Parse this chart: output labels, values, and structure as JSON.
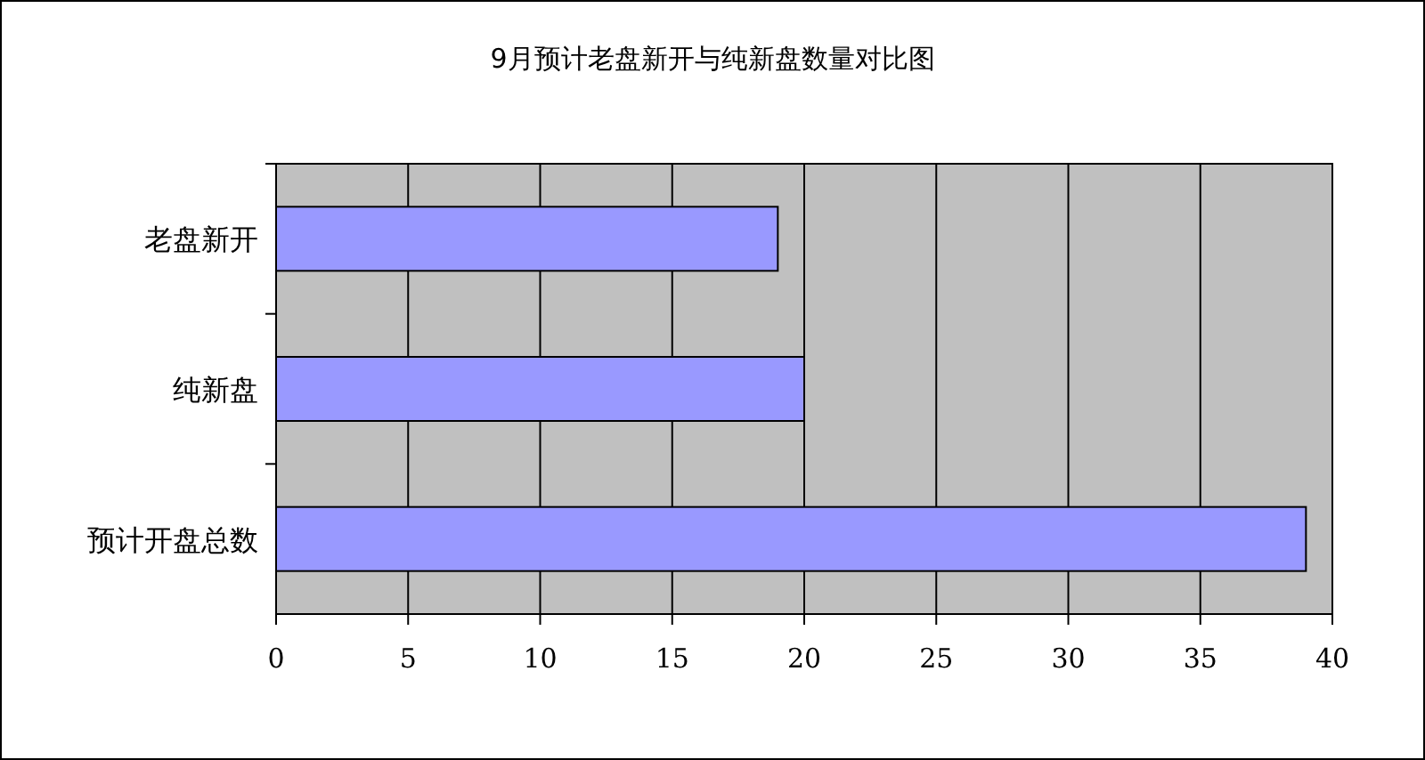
{
  "chart_data": {
    "type": "bar",
    "orientation": "horizontal",
    "title": "9月预计老盘新开与纯新盘数量对比图",
    "categories": [
      "老盘新开",
      "纯新盘",
      "预计开盘总数"
    ],
    "values": [
      19,
      20,
      39
    ],
    "color": "#9999ff",
    "xlim": [
      0,
      40
    ],
    "xticks": [
      0,
      5,
      10,
      15,
      20,
      25,
      30,
      35,
      40
    ],
    "grid": "x"
  }
}
